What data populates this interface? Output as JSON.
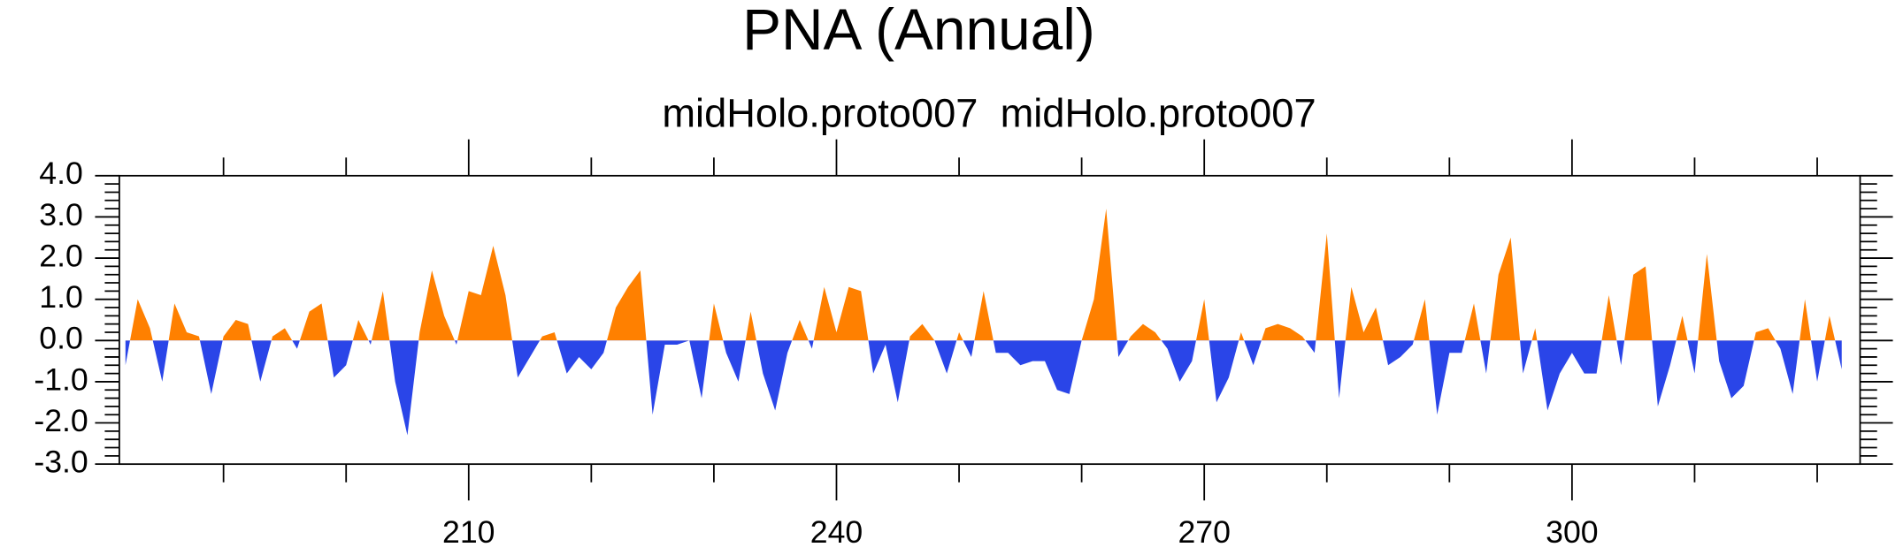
{
  "chart_data": {
    "type": "area",
    "title": "PNA (Annual)",
    "subtitle": "midHolo.proto007  midHolo.proto007",
    "x": [
      182,
      183,
      184,
      185,
      186,
      187,
      188,
      189,
      190,
      191,
      192,
      193,
      194,
      195,
      196,
      197,
      198,
      199,
      200,
      201,
      202,
      203,
      204,
      205,
      206,
      207,
      208,
      209,
      210,
      211,
      212,
      213,
      214,
      215,
      216,
      217,
      218,
      219,
      220,
      221,
      222,
      223,
      224,
      225,
      226,
      227,
      228,
      229,
      230,
      231,
      232,
      233,
      234,
      235,
      236,
      237,
      238,
      239,
      240,
      241,
      242,
      243,
      244,
      245,
      246,
      247,
      248,
      249,
      250,
      251,
      252,
      253,
      254,
      255,
      256,
      257,
      258,
      259,
      260,
      261,
      262,
      263,
      264,
      265,
      266,
      267,
      268,
      269,
      270,
      271,
      272,
      273,
      274,
      275,
      276,
      277,
      278,
      279,
      280,
      281,
      282,
      283,
      284,
      285,
      286,
      287,
      288,
      289,
      290,
      291,
      292,
      293,
      294,
      295,
      296,
      297,
      298,
      299,
      300,
      301,
      302,
      303,
      304,
      305,
      306,
      307,
      308,
      309,
      310,
      311,
      312,
      313,
      314,
      315,
      316,
      317,
      318,
      319,
      320,
      321,
      322
    ],
    "values": [
      -0.6,
      1.0,
      0.3,
      -1.0,
      0.9,
      0.2,
      0.1,
      -1.3,
      0.1,
      0.5,
      0.4,
      -1.0,
      0.1,
      0.3,
      -0.2,
      0.7,
      0.9,
      -0.9,
      -0.6,
      0.5,
      -0.1,
      1.2,
      -1.0,
      -2.3,
      0.2,
      1.7,
      0.6,
      -0.1,
      1.2,
      1.1,
      2.3,
      1.1,
      -0.9,
      -0.4,
      0.1,
      0.2,
      -0.8,
      -0.4,
      -0.7,
      -0.3,
      0.8,
      1.3,
      1.7,
      -1.8,
      -0.1,
      -0.1,
      0.0,
      -1.4,
      0.9,
      -0.3,
      -1.0,
      0.7,
      -0.8,
      -1.7,
      -0.3,
      0.5,
      -0.2,
      1.3,
      0.2,
      1.3,
      1.2,
      -0.8,
      -0.1,
      -1.5,
      0.1,
      0.4,
      0.0,
      -0.8,
      0.2,
      -0.4,
      1.2,
      -0.3,
      -0.3,
      -0.6,
      -0.5,
      -0.5,
      -1.2,
      -1.3,
      0.0,
      1.0,
      3.2,
      -0.4,
      0.1,
      0.4,
      0.2,
      -0.2,
      -1.0,
      -0.5,
      1.0,
      -1.5,
      -0.9,
      0.2,
      -0.6,
      0.3,
      0.4,
      0.3,
      0.1,
      -0.3,
      2.6,
      -1.4,
      1.3,
      0.2,
      0.8,
      -0.6,
      -0.4,
      -0.1,
      1.0,
      -1.8,
      -0.3,
      -0.3,
      0.9,
      -0.8,
      1.6,
      2.5,
      -0.8,
      0.3,
      -1.7,
      -0.8,
      -0.3,
      -0.8,
      -0.8,
      1.1,
      -0.6,
      1.6,
      1.8,
      -1.6,
      -0.6,
      0.6,
      -0.8,
      2.1,
      -0.5,
      -1.4,
      -1.1,
      0.2,
      0.3,
      -0.2,
      -1.3,
      1.0,
      -1.0,
      0.6,
      -0.7
    ],
    "positive_color": "#ff8000",
    "negative_color": "#2a45e8",
    "xlim": [
      181.5,
      323.5
    ],
    "xticks": [
      210,
      240,
      270,
      300
    ],
    "xminorticks": [
      190,
      200,
      220,
      230,
      250,
      260,
      280,
      290,
      310,
      320
    ],
    "ylim": [
      -3,
      4
    ],
    "yticks": [
      {
        "value": 4,
        "label": "4.0"
      },
      {
        "value": 3,
        "label": "3.0"
      },
      {
        "value": 2,
        "label": "2.0"
      },
      {
        "value": 1,
        "label": "1.0"
      },
      {
        "value": 0,
        "label": "0.0"
      },
      {
        "value": -1,
        "label": "-1.0"
      },
      {
        "value": -2,
        "label": "-2.0"
      },
      {
        "value": -3,
        "label": "-3.0"
      }
    ],
    "yminorticks": [
      3.8,
      3.6,
      3.4,
      3.2,
      2.8,
      2.6,
      2.4,
      2.2,
      1.8,
      1.6,
      1.4,
      1.2,
      0.8,
      0.6,
      0.4,
      0.2,
      -0.2,
      -0.4,
      -0.6,
      -0.8,
      -1.2,
      -1.4,
      -1.6,
      -1.8,
      -2.2,
      -2.4,
      -2.6,
      -2.8
    ]
  }
}
